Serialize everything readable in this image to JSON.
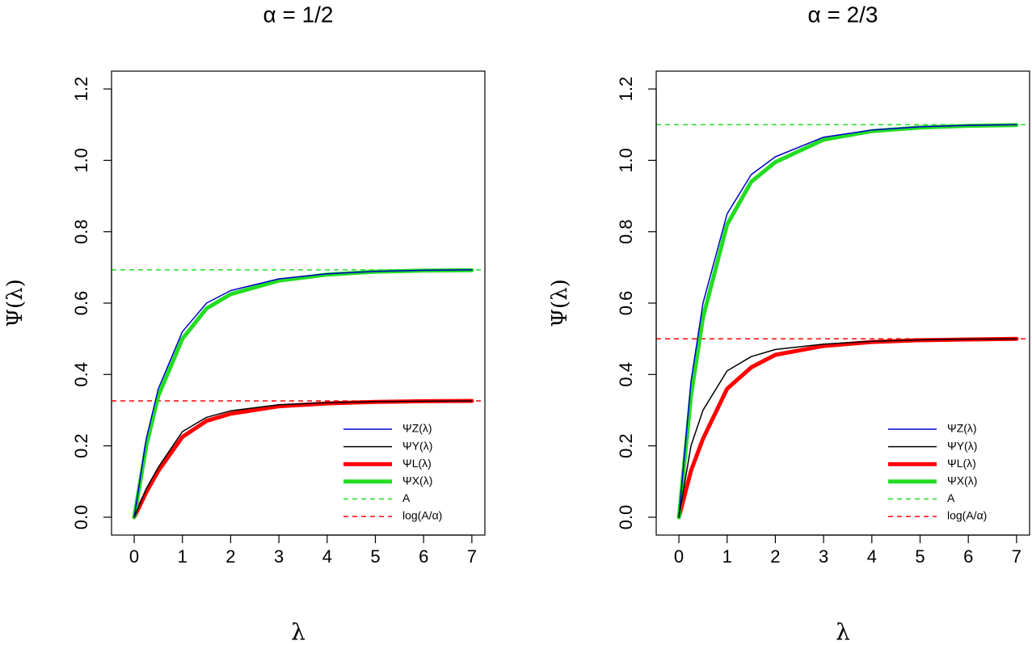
{
  "chart_data": [
    {
      "type": "line",
      "title": "α = 1/2",
      "x_label": "λ",
      "y_label": "Ψ(λ)",
      "x": [
        0,
        0.25,
        0.5,
        1,
        1.5,
        2,
        3,
        4,
        5,
        6,
        7
      ],
      "series": [
        {
          "name": "ΨZ(λ)",
          "color": "#0000cc",
          "width": 1.5,
          "values": [
            0,
            0.22,
            0.36,
            0.52,
            0.6,
            0.635,
            0.668,
            0.682,
            0.689,
            0.692,
            0.693
          ]
        },
        {
          "name": "ΨY(λ)",
          "color": "#000000",
          "width": 1.5,
          "values": [
            0,
            0.08,
            0.14,
            0.24,
            0.28,
            0.298,
            0.315,
            0.321,
            0.324,
            0.325,
            0.326
          ]
        },
        {
          "name": "ΨL(λ)",
          "color": "#ff0000",
          "width": 5,
          "values": [
            0,
            0.07,
            0.13,
            0.225,
            0.27,
            0.29,
            0.311,
            0.319,
            0.323,
            0.325,
            0.326
          ]
        },
        {
          "name": "ΨX(λ)",
          "color": "#22dd22",
          "width": 5,
          "values": [
            0,
            0.2,
            0.34,
            0.5,
            0.585,
            0.625,
            0.663,
            0.68,
            0.688,
            0.691,
            0.692
          ]
        },
        {
          "name": "A",
          "color": "#22dd22",
          "width": 1.5,
          "dash": true,
          "y": 0.693
        },
        {
          "name": "log(A/α)",
          "color": "#ff0000",
          "width": 1.5,
          "dash": true,
          "y": 0.326
        }
      ],
      "xlim": [
        -0.47,
        7.27
      ],
      "xticks": [
        0,
        1,
        2,
        3,
        4,
        5,
        6,
        7
      ],
      "ylim": [
        -0.05,
        1.25
      ],
      "yticks": [
        {
          "value": 0,
          "label": "0.0"
        },
        0.2,
        0.4,
        0.6,
        0.8,
        {
          "value": 1,
          "label": "1.0"
        },
        1.2
      ],
      "legend": "bottom-right"
    },
    {
      "type": "line",
      "title": "α = 2/3",
      "x_label": "λ",
      "y_label": "Ψ(λ)",
      "x": [
        0,
        0.25,
        0.5,
        1,
        1.5,
        2,
        3,
        4,
        5,
        6,
        7
      ],
      "series": [
        {
          "name": "ΨZ(λ)",
          "color": "#0000cc",
          "width": 1.5,
          "values": [
            0,
            0.38,
            0.6,
            0.85,
            0.96,
            1.01,
            1.065,
            1.085,
            1.094,
            1.098,
            1.1
          ]
        },
        {
          "name": "ΨY(λ)",
          "color": "#000000",
          "width": 1.5,
          "values": [
            0,
            0.2,
            0.3,
            0.41,
            0.45,
            0.47,
            0.485,
            0.493,
            0.497,
            0.499,
            0.5
          ]
        },
        {
          "name": "ΨL(λ)",
          "color": "#ff0000",
          "width": 5,
          "values": [
            0,
            0.13,
            0.22,
            0.36,
            0.42,
            0.455,
            0.48,
            0.491,
            0.496,
            0.498,
            0.5
          ]
        },
        {
          "name": "ΨX(λ)",
          "color": "#22dd22",
          "width": 5,
          "values": [
            0,
            0.34,
            0.56,
            0.82,
            0.94,
            0.995,
            1.058,
            1.082,
            1.092,
            1.097,
            1.099
          ]
        },
        {
          "name": "A",
          "color": "#22dd22",
          "width": 1.5,
          "dash": true,
          "y": 1.1
        },
        {
          "name": "log(A/α)",
          "color": "#ff0000",
          "width": 1.5,
          "dash": true,
          "y": 0.5
        }
      ],
      "xlim": [
        -0.47,
        7.27
      ],
      "xticks": [
        0,
        1,
        2,
        3,
        4,
        5,
        6,
        7
      ],
      "ylim": [
        -0.05,
        1.25
      ],
      "yticks": [
        {
          "value": 0,
          "label": "0.0"
        },
        0.2,
        0.4,
        0.6,
        0.8,
        {
          "value": 1,
          "label": "1.0"
        },
        1.2
      ],
      "legend": "bottom-right"
    }
  ]
}
